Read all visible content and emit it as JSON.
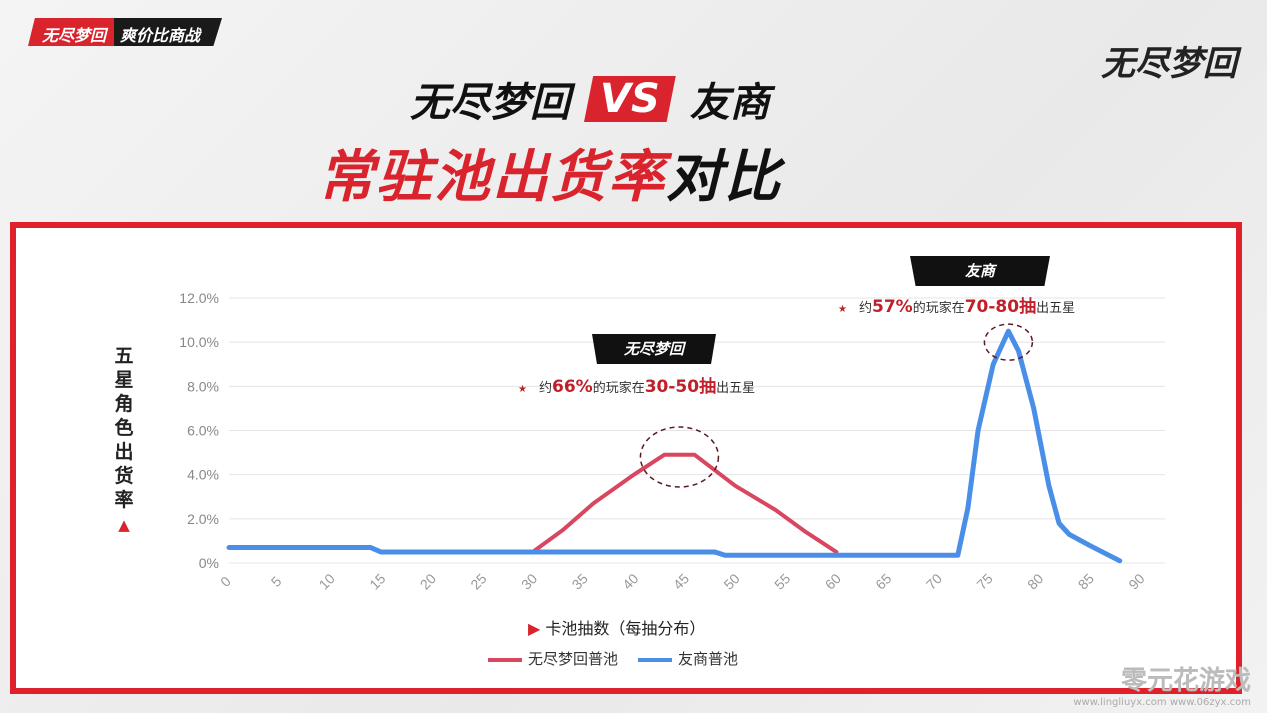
{
  "header": {
    "tag_brand": "无尽梦回",
    "tag_subtitle": "爽价比商战",
    "logo": "无尽梦回",
    "title_left": "无尽梦回",
    "title_vs": "VS",
    "title_right": "友商",
    "subtitle_red": "常驻池出货率",
    "subtitle_black": "对比"
  },
  "colors": {
    "accent": "#d9232d",
    "series_wjmh": "#d9465f",
    "series_ys": "#4a8fe7"
  },
  "chart_data": {
    "type": "line",
    "xlabel": "卡池抽数（每抽分布）",
    "ylabel": "五星角色出货率",
    "xlim": [
      0,
      90
    ],
    "ylim": [
      0,
      12
    ],
    "xticks": [
      "0",
      "5",
      "10",
      "15",
      "20",
      "25",
      "30",
      "35",
      "40",
      "45",
      "50",
      "55",
      "60",
      "65",
      "70",
      "75",
      "80",
      "85",
      "90"
    ],
    "yticks": [
      "0%",
      "2.0%",
      "4.0%",
      "6.0%",
      "8.0%",
      "10.0%",
      "12.0%"
    ],
    "grid": true,
    "legend_position": "bottom",
    "series": [
      {
        "name": "无尽梦回普池",
        "points": [
          [
            30,
            0.5
          ],
          [
            33,
            1.5
          ],
          [
            36,
            2.7
          ],
          [
            40,
            4.0
          ],
          [
            43,
            4.9
          ],
          [
            46,
            4.9
          ],
          [
            50,
            3.5
          ],
          [
            54,
            2.4
          ],
          [
            57,
            1.4
          ],
          [
            60,
            0.5
          ]
        ]
      },
      {
        "name": "友商普池",
        "points": [
          [
            0,
            0.7
          ],
          [
            14,
            0.7
          ],
          [
            15,
            0.5
          ],
          [
            48,
            0.5
          ],
          [
            49,
            0.35
          ],
          [
            72,
            0.35
          ],
          [
            73,
            2.5
          ],
          [
            74,
            6.0
          ],
          [
            75.5,
            9.0
          ],
          [
            77,
            10.5
          ],
          [
            78,
            9.6
          ],
          [
            79.5,
            7.0
          ],
          [
            81,
            3.5
          ],
          [
            82,
            1.8
          ],
          [
            83,
            1.3
          ],
          [
            85,
            0.8
          ],
          [
            88,
            0.1
          ]
        ]
      }
    ],
    "annotations": [
      {
        "badge": "无尽梦回",
        "pre": "约",
        "pct": "66%",
        "mid": "的玩家在",
        "range": "30-50抽",
        "post": "出五星"
      },
      {
        "badge": "友商",
        "pre": "约",
        "pct": "57%",
        "mid": "的玩家在",
        "range": "70-80抽",
        "post": "出五星"
      }
    ]
  },
  "watermark": {
    "name": "零元花游戏",
    "urls": "www.lingliuyx.com  www.06zyx.com"
  }
}
